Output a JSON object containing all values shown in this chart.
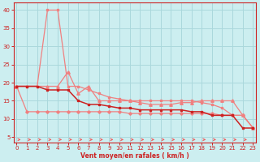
{
  "background_color": "#cceef0",
  "grid_color": "#aad8dc",
  "x_label": "Vent moyen/en rafales ( km/h )",
  "x_ticks": [
    0,
    1,
    2,
    3,
    4,
    5,
    6,
    7,
    8,
    9,
    10,
    11,
    12,
    13,
    14,
    15,
    16,
    17,
    18,
    19,
    20,
    21,
    22,
    23
  ],
  "y_ticks": [
    5,
    10,
    15,
    20,
    25,
    30,
    35,
    40
  ],
  "xlim": [
    -0.3,
    23.3
  ],
  "ylim": [
    3.5,
    42
  ],
  "line_color_light": "#f08080",
  "line_color_dark": "#cc2222",
  "arrow_color": "#f06060",
  "lines": [
    {
      "x": [
        0,
        1,
        2,
        3,
        4,
        5,
        6,
        7,
        8,
        9,
        10,
        11,
        12,
        13,
        14,
        15,
        16,
        17,
        18,
        19,
        20,
        21,
        22,
        23
      ],
      "y": [
        19,
        19,
        19,
        40,
        40,
        19,
        19,
        18,
        17,
        16,
        15.5,
        15,
        15,
        15,
        15,
        15,
        15,
        15,
        14.5,
        14,
        13,
        11,
        11,
        7.5
      ],
      "color": "#f08080",
      "lw": 0.9,
      "marker": "s",
      "ms": 2.0,
      "zorder": 2
    },
    {
      "x": [
        0,
        3,
        4,
        5,
        6,
        7,
        8,
        9,
        10,
        11,
        12,
        13,
        14,
        15,
        16,
        17,
        18,
        19,
        20,
        21,
        22,
        23
      ],
      "y": [
        19,
        19,
        19,
        23,
        17,
        19,
        15,
        15,
        15,
        15,
        14.5,
        14,
        14,
        14,
        14.5,
        14.5,
        15,
        15,
        15,
        15,
        11,
        7.5
      ],
      "color": "#f08080",
      "lw": 0.9,
      "marker": "^",
      "ms": 2.5,
      "zorder": 2
    },
    {
      "x": [
        0,
        1,
        2,
        3,
        4,
        5,
        6,
        7,
        8,
        9,
        10,
        11,
        12,
        13,
        14,
        15,
        16,
        17,
        18,
        19,
        20,
        21,
        22,
        23
      ],
      "y": [
        19,
        19,
        19,
        18,
        18,
        18,
        15,
        14,
        14,
        13.5,
        13,
        13,
        12.5,
        12.5,
        12.5,
        12.5,
        12.5,
        12,
        12,
        11,
        11,
        11,
        7.5,
        7.5
      ],
      "color": "#cc2222",
      "lw": 1.1,
      "marker": "s",
      "ms": 2.0,
      "zorder": 4
    },
    {
      "x": [
        0,
        1,
        2,
        3,
        4,
        5,
        6,
        7,
        8,
        9,
        10,
        11,
        12,
        13,
        14,
        15,
        16,
        17,
        18,
        19,
        20,
        21,
        22,
        23
      ],
      "y": [
        19,
        12,
        12,
        12,
        12,
        12,
        12,
        12,
        12,
        12,
        12,
        11.5,
        11.5,
        11.5,
        11.5,
        11.5,
        11.5,
        11.5,
        11.5,
        11.5,
        11,
        11,
        11,
        7.5
      ],
      "color": "#f08080",
      "lw": 0.9,
      "marker": "D",
      "ms": 1.8,
      "zorder": 2
    }
  ],
  "arrows": {
    "x": [
      0,
      1,
      2,
      3,
      4,
      5,
      6,
      7,
      8,
      9,
      10,
      11,
      12,
      13,
      14,
      15,
      16,
      17,
      18,
      19,
      20,
      21,
      22,
      23
    ],
    "y": 4.3
  }
}
